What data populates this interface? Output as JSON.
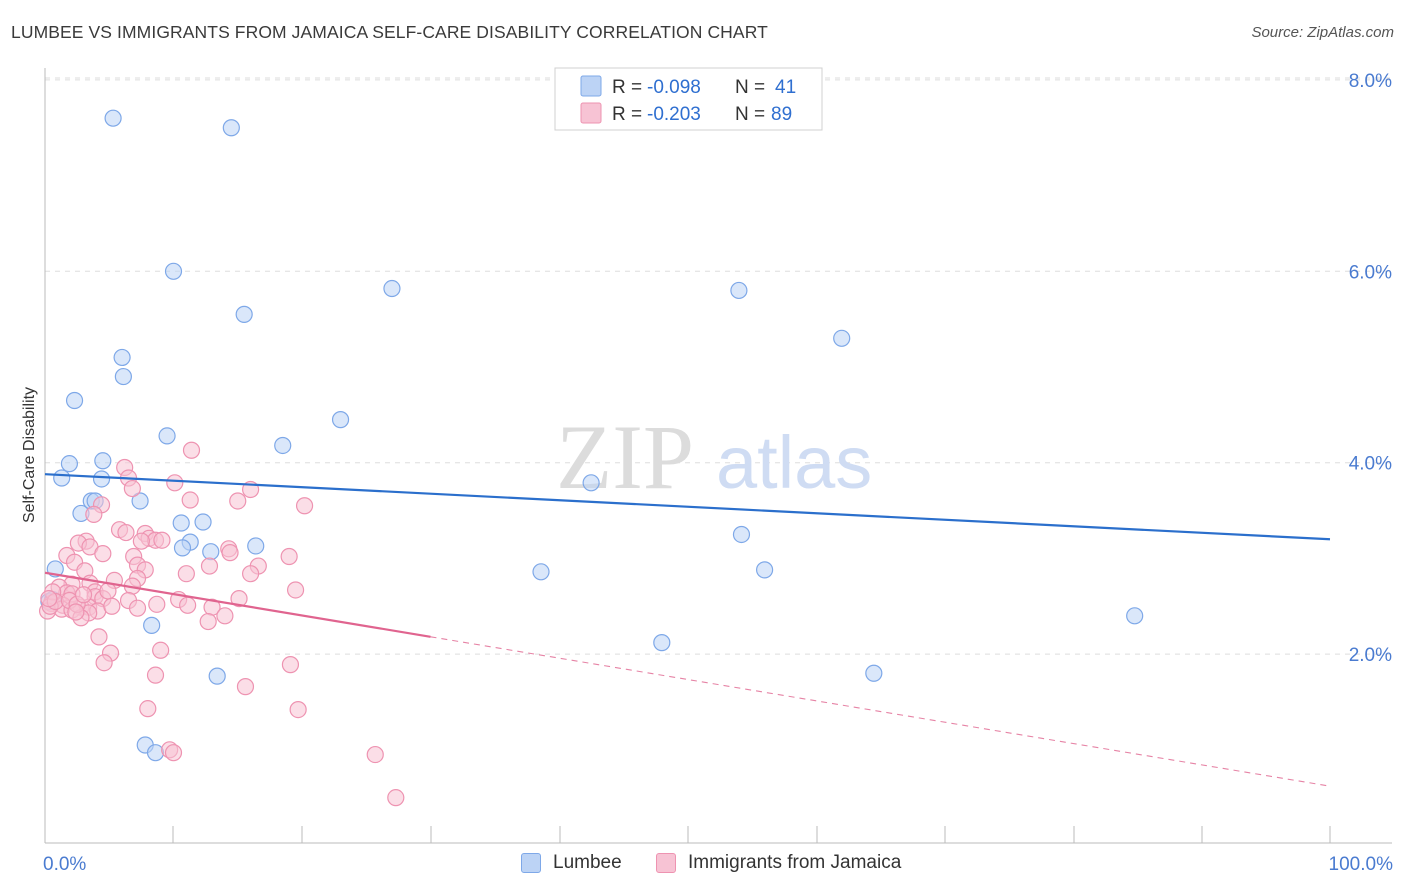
{
  "title": "LUMBEE VS IMMIGRANTS FROM JAMAICA SELF-CARE DISABILITY CORRELATION CHART",
  "source": "Source: ZipAtlas.com",
  "watermark": {
    "zip": "ZIP",
    "atlas": "atlas"
  },
  "colors": {
    "lumbee_fill": "#bcd3f5",
    "lumbee_stroke": "#7ea8e8",
    "lumbee_line": "#2b6fcc",
    "jamaica_fill": "#f7c3d4",
    "jamaica_stroke": "#ee93b1",
    "jamaica_line": "#e0648f",
    "tick_label": "#4a7bd0",
    "grid": "#dddddd",
    "stat_value": "#2f6fd0"
  },
  "legend_stats": [
    {
      "r_label": "R =",
      "r_value": "-0.098",
      "n_label": "N =",
      "n_value": "41"
    },
    {
      "r_label": "R =",
      "r_value": "-0.203",
      "n_label": "N =",
      "n_value": "89"
    }
  ],
  "chart_data": {
    "type": "scatter",
    "title": "LUMBEE VS IMMIGRANTS FROM JAMAICA SELF-CARE DISABILITY CORRELATION CHART",
    "xlabel": "",
    "ylabel": "Self-Care Disability",
    "xlim": [
      0,
      100
    ],
    "ylim": [
      0,
      8.5
    ],
    "x_tick_labels": [
      "0.0%",
      "100.0%"
    ],
    "y_ticks": [
      2,
      4,
      6,
      8
    ],
    "y_tick_labels": [
      "2.0%",
      "4.0%",
      "6.0%",
      "8.0%"
    ],
    "grid": true,
    "legend_position": "top-center",
    "series": [
      {
        "name": "Lumbee",
        "r": -0.098,
        "n": 41,
        "trend": {
          "x": [
            0,
            100
          ],
          "y": [
            3.88,
            3.2
          ],
          "dashed_from": null
        },
        "points": [
          [
            5.3,
            7.6
          ],
          [
            14.5,
            7.5
          ],
          [
            10,
            6.0
          ],
          [
            54,
            5.8
          ],
          [
            15.5,
            5.55
          ],
          [
            27,
            5.82
          ],
          [
            62,
            5.3
          ],
          [
            6,
            5.1
          ],
          [
            6.1,
            4.9
          ],
          [
            2.3,
            4.65
          ],
          [
            23,
            4.45
          ],
          [
            9.5,
            4.28
          ],
          [
            18.5,
            4.18
          ],
          [
            4.5,
            4.02
          ],
          [
            1.9,
            3.99
          ],
          [
            1.3,
            3.84
          ],
          [
            4.4,
            3.83
          ],
          [
            42.5,
            3.79
          ],
          [
            3.6,
            3.6
          ],
          [
            7.4,
            3.6
          ],
          [
            3.9,
            3.6
          ],
          [
            2.8,
            3.47
          ],
          [
            10.6,
            3.37
          ],
          [
            12.3,
            3.38
          ],
          [
            54.2,
            3.25
          ],
          [
            11.3,
            3.17
          ],
          [
            16.4,
            3.13
          ],
          [
            10.7,
            3.11
          ],
          [
            12.9,
            3.07
          ],
          [
            0.8,
            2.89
          ],
          [
            38.6,
            2.86
          ],
          [
            56,
            2.88
          ],
          [
            84.8,
            2.4
          ],
          [
            8.3,
            2.3
          ],
          [
            48,
            2.12
          ],
          [
            64.5,
            1.8
          ],
          [
            13.4,
            1.77
          ],
          [
            7.8,
            1.05
          ],
          [
            8.6,
            0.97
          ],
          [
            0.3,
            2.55
          ],
          [
            0.6,
            2.57
          ]
        ]
      },
      {
        "name": "Immigrants from Jamaica",
        "r": -0.203,
        "n": 89,
        "trend": {
          "x": [
            0,
            100
          ],
          "y": [
            2.85,
            0.62
          ],
          "dashed_from": 30
        },
        "points": [
          [
            11.4,
            4.13
          ],
          [
            6.2,
            3.95
          ],
          [
            6.5,
            3.84
          ],
          [
            10.1,
            3.79
          ],
          [
            16,
            3.72
          ],
          [
            6.8,
            3.73
          ],
          [
            4.4,
            3.56
          ],
          [
            11.3,
            3.61
          ],
          [
            15,
            3.6
          ],
          [
            20.2,
            3.55
          ],
          [
            3.8,
            3.46
          ],
          [
            5.8,
            3.3
          ],
          [
            6.3,
            3.27
          ],
          [
            7.8,
            3.26
          ],
          [
            8.1,
            3.21
          ],
          [
            8.6,
            3.19
          ],
          [
            9.1,
            3.19
          ],
          [
            7.5,
            3.18
          ],
          [
            3.2,
            3.18
          ],
          [
            2.6,
            3.16
          ],
          [
            3.5,
            3.12
          ],
          [
            14.3,
            3.1
          ],
          [
            14.4,
            3.06
          ],
          [
            4.5,
            3.05
          ],
          [
            1.7,
            3.03
          ],
          [
            6.9,
            3.02
          ],
          [
            19,
            3.02
          ],
          [
            2.3,
            2.96
          ],
          [
            7.2,
            2.93
          ],
          [
            12.8,
            2.92
          ],
          [
            16.6,
            2.92
          ],
          [
            3.1,
            2.87
          ],
          [
            7.8,
            2.88
          ],
          [
            16,
            2.84
          ],
          [
            11,
            2.84
          ],
          [
            7.2,
            2.79
          ],
          [
            5.4,
            2.77
          ],
          [
            3.5,
            2.74
          ],
          [
            2.1,
            2.73
          ],
          [
            6.8,
            2.71
          ],
          [
            1.1,
            2.7
          ],
          [
            19.5,
            2.67
          ],
          [
            3.9,
            2.65
          ],
          [
            1.7,
            2.64
          ],
          [
            2.1,
            2.63
          ],
          [
            3.9,
            2.6
          ],
          [
            4.5,
            2.58
          ],
          [
            10.4,
            2.57
          ],
          [
            15.1,
            2.58
          ],
          [
            6.5,
            2.56
          ],
          [
            0.5,
            2.53
          ],
          [
            1.4,
            2.51
          ],
          [
            8.7,
            2.52
          ],
          [
            11.1,
            2.51
          ],
          [
            2.8,
            2.49
          ],
          [
            3.4,
            2.49
          ],
          [
            7.2,
            2.48
          ],
          [
            13,
            2.49
          ],
          [
            1.3,
            2.47
          ],
          [
            2.1,
            2.46
          ],
          [
            4.1,
            2.45
          ],
          [
            3.4,
            2.43
          ],
          [
            14,
            2.4
          ],
          [
            2.8,
            2.38
          ],
          [
            12.7,
            2.34
          ],
          [
            4.2,
            2.18
          ],
          [
            9,
            2.04
          ],
          [
            5.1,
            2.01
          ],
          [
            4.6,
            1.91
          ],
          [
            19.1,
            1.89
          ],
          [
            8.6,
            1.78
          ],
          [
            15.6,
            1.66
          ],
          [
            8,
            1.43
          ],
          [
            19.7,
            1.42
          ],
          [
            9.7,
            1.0
          ],
          [
            10,
            0.97
          ],
          [
            25.7,
            0.95
          ],
          [
            27.3,
            0.5
          ],
          [
            0.2,
            2.45
          ],
          [
            0.4,
            2.5
          ],
          [
            0.6,
            2.65
          ],
          [
            0.8,
            2.55
          ],
          [
            0.3,
            2.58
          ],
          [
            1.9,
            2.56
          ],
          [
            2.5,
            2.52
          ],
          [
            3,
            2.62
          ],
          [
            2.4,
            2.44
          ],
          [
            5.2,
            2.5
          ],
          [
            4.9,
            2.66
          ]
        ]
      }
    ]
  },
  "bottom_legend": [
    {
      "label": "Lumbee"
    },
    {
      "label": "Immigrants from Jamaica"
    }
  ]
}
